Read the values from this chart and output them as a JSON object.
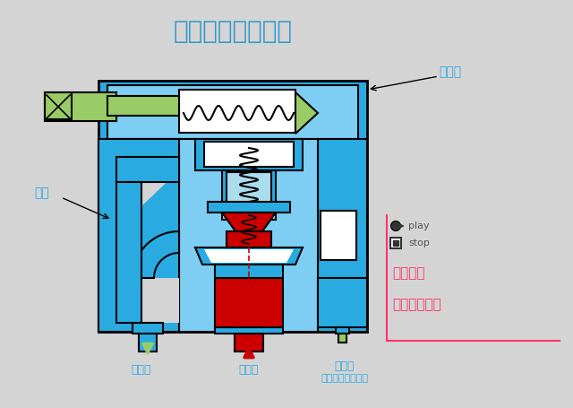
{
  "bg_color": "#d4d4d4",
  "title": "当进油压力升高时",
  "title_color": "#3399cc",
  "title_fontsize": 20,
  "cyan": "#29abe2",
  "light_cyan": "#7ecef4",
  "very_light_cyan": "#aaddee",
  "green": "#99cc66",
  "red": "#cc0000",
  "dark_red": "#990000",
  "pink": "#ff3366",
  "white": "#ffffff",
  "black": "#000000",
  "gray": "#888888",
  "label_cyan": "#29abe2",
  "label_main": "主阀",
  "label_pilot": "先导阀",
  "label_out": "出油口",
  "label_in": "进油口",
  "label_ext": "外控口",
  "label_plug": "（一般是堵塞的）",
  "label_step": "逐步显示",
  "label_when": "当压力不高时",
  "label_play": "play",
  "label_stop": "stop"
}
